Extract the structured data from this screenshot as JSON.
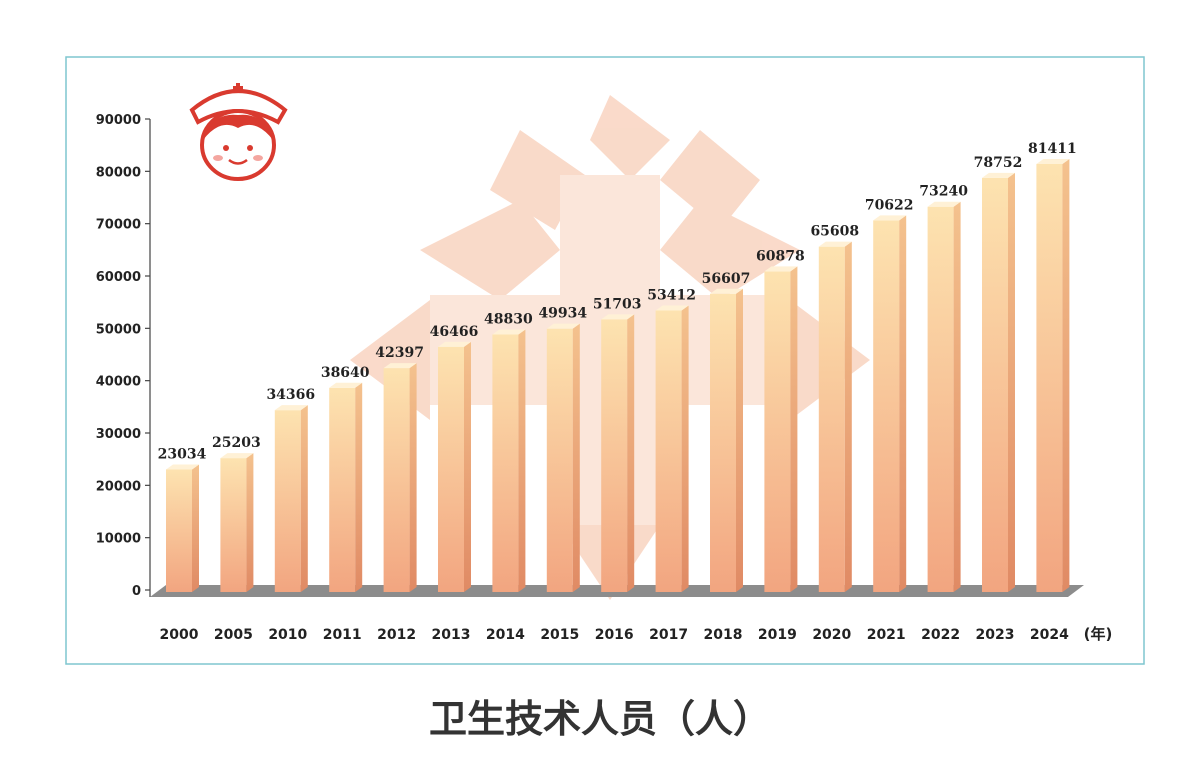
{
  "caption": "卫生技术人员（人）",
  "x_unit": "(年)",
  "colors": {
    "frame": "#7fc6cf",
    "bar_top": "#fde3b0",
    "bar_bottom": "#f2a580",
    "bar_side": "#e8926c",
    "watermark": "#f7c9b2",
    "floor": "#8c8c8c",
    "nurse_red": "#d93a2f"
  },
  "icons": {
    "corner_icon": "nurse-face-icon",
    "watermark": "red-cross-emblem-icon"
  },
  "chart_data": {
    "type": "bar",
    "categories": [
      "2000",
      "2005",
      "2010",
      "2011",
      "2012",
      "2013",
      "2014",
      "2015",
      "2016",
      "2017",
      "2018",
      "2019",
      "2020",
      "2021",
      "2022",
      "2023",
      "2024"
    ],
    "values": [
      23034,
      25203,
      34366,
      38640,
      42397,
      46466,
      48830,
      49934,
      51703,
      53412,
      56607,
      60878,
      65608,
      70622,
      73240,
      78752,
      81411
    ],
    "title": "卫生技术人员（人）",
    "xlabel": "(年)",
    "ylabel": "",
    "ylim": [
      0,
      90000
    ],
    "yticks": [
      0,
      10000,
      20000,
      30000,
      40000,
      50000,
      60000,
      70000,
      80000,
      90000
    ],
    "grid": false,
    "legend": "none",
    "data_labels": true
  }
}
